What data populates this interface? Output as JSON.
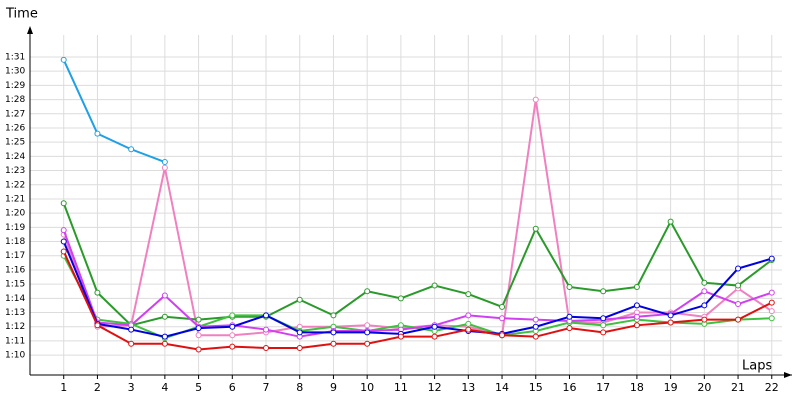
{
  "chart_data": {
    "type": "line",
    "x_label": "Laps",
    "y_label": "Time",
    "x": [
      1,
      2,
      3,
      4,
      5,
      6,
      7,
      8,
      9,
      10,
      11,
      12,
      13,
      14,
      15,
      16,
      17,
      18,
      19,
      20,
      21,
      22
    ],
    "xlim": [
      0,
      22.6
    ],
    "xticks": [
      1,
      2,
      3,
      4,
      5,
      6,
      7,
      8,
      9,
      10,
      11,
      12,
      13,
      14,
      15,
      16,
      17,
      18,
      19,
      20,
      21,
      22
    ],
    "ylim": [
      68.6,
      92.9
    ],
    "yticks": [
      {
        "value": 70,
        "label": "1:10"
      },
      {
        "value": 71,
        "label": "1:11"
      },
      {
        "value": 72,
        "label": "1:12"
      },
      {
        "value": 73,
        "label": "1:13"
      },
      {
        "value": 74,
        "label": "1:14"
      },
      {
        "value": 75,
        "label": "1:15"
      },
      {
        "value": 76,
        "label": "1:16"
      },
      {
        "value": 77,
        "label": "1:17"
      },
      {
        "value": 78,
        "label": "1:18"
      },
      {
        "value": 79,
        "label": "1:19"
      },
      {
        "value": 80,
        "label": "1:20"
      },
      {
        "value": 81,
        "label": "1:21"
      },
      {
        "value": 82,
        "label": "1:22"
      },
      {
        "value": 83,
        "label": "1:23"
      },
      {
        "value": 84,
        "label": "1:24"
      },
      {
        "value": 85,
        "label": "1:25"
      },
      {
        "value": 86,
        "label": "1:26"
      },
      {
        "value": 87,
        "label": "1:27"
      },
      {
        "value": 88,
        "label": "1:28"
      },
      {
        "value": 89,
        "label": "1:29"
      },
      {
        "value": 90,
        "label": "1:30"
      },
      {
        "value": 91,
        "label": "1:31"
      }
    ],
    "grid": true,
    "series": [
      {
        "color": "#1ea0e6",
        "values": [
          90.8,
          85.6,
          84.5,
          83.6,
          null,
          null,
          null,
          null,
          null,
          null,
          null,
          null,
          null,
          null,
          null,
          null,
          null,
          null,
          null,
          null,
          null,
          null
        ]
      },
      {
        "color": "#f080c0",
        "values": [
          78.5,
          72.0,
          72.1,
          83.2,
          71.4,
          71.4,
          71.6,
          72.0,
          72.0,
          72.1,
          71.9,
          72.1,
          72.0,
          71.4,
          88.0,
          72.3,
          72.3,
          73.0,
          73.0,
          72.7,
          74.7,
          73.1
        ]
      },
      {
        "color": "#2a9a2a",
        "values": [
          80.7,
          74.4,
          72.1,
          72.7,
          72.5,
          72.7,
          72.7,
          73.9,
          72.8,
          74.5,
          74.0,
          74.9,
          74.3,
          73.4,
          78.9,
          74.8,
          74.5,
          74.8,
          79.4,
          75.1,
          74.9,
          76.7
        ]
      },
      {
        "color": "#40c040",
        "values": [
          77.0,
          72.5,
          72.2,
          71.2,
          72.0,
          72.8,
          72.8,
          71.7,
          72.0,
          71.7,
          72.1,
          71.7,
          72.2,
          71.4,
          71.7,
          72.3,
          72.1,
          72.5,
          72.3,
          72.2,
          72.5,
          72.6
        ]
      },
      {
        "color": "#d040f0",
        "values": [
          78.8,
          72.3,
          72.1,
          74.2,
          72.0,
          72.1,
          71.8,
          71.3,
          71.7,
          71.7,
          71.8,
          72.1,
          72.8,
          72.6,
          72.5,
          72.4,
          72.5,
          72.7,
          72.9,
          74.5,
          73.6,
          74.4
        ]
      },
      {
        "color": "#0000e0",
        "values": [
          78.0,
          72.2,
          71.8,
          71.3,
          71.9,
          72.0,
          72.8,
          71.6,
          71.6,
          71.6,
          71.5,
          72.0,
          71.7,
          71.5,
          72.0,
          72.7,
          72.6,
          73.5,
          72.8,
          73.5,
          76.1,
          76.8
        ]
      },
      {
        "color": "#e01010",
        "values": [
          77.3,
          72.1,
          70.8,
          70.8,
          70.4,
          70.6,
          70.5,
          70.5,
          70.8,
          70.8,
          71.3,
          71.3,
          71.8,
          71.4,
          71.3,
          71.9,
          71.6,
          72.1,
          72.3,
          72.5,
          72.5,
          73.7
        ]
      }
    ]
  }
}
